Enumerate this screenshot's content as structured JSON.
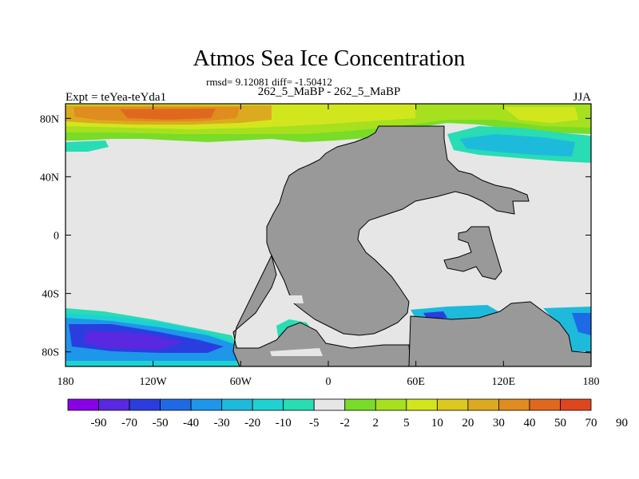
{
  "chart_data": {
    "type": "heatmap",
    "title": "Atmos Sea Ice Concentration",
    "stats": "rmsd= 9.12081 diff= -1.50412",
    "subtitle": "262_5_MaBP - 262_5_MaBP",
    "left_label": "Expt = teYea-teYda1",
    "right_label": "JJA",
    "projection": "cylindrical-equidistant",
    "xlim": [
      -180,
      180
    ],
    "ylim": [
      -90,
      90
    ],
    "x_ticks": [
      -180,
      -120,
      -60,
      0,
      60,
      120,
      180
    ],
    "x_tick_labels": [
      "180",
      "120W",
      "60W",
      "0",
      "60E",
      "120E",
      "180"
    ],
    "y_ticks": [
      80,
      40,
      0,
      -40,
      -80
    ],
    "y_tick_labels": [
      "80N",
      "40N",
      "0",
      "40S",
      "80S"
    ],
    "levels": [
      "-90",
      "-70",
      "-50",
      "-40",
      "-30",
      "-20",
      "-10",
      "-5",
      "-2",
      "2",
      "5",
      "10",
      "20",
      "30",
      "40",
      "50",
      "70",
      "90"
    ],
    "colors": [
      "#8a00e6",
      "#5a28e0",
      "#2a3ee0",
      "#1e6ae6",
      "#1e96ea",
      "#1ebadc",
      "#1ed2d2",
      "#28dcb4",
      "#e6e6e6",
      "#78dc28",
      "#a6e01e",
      "#d2e61e",
      "#dcc81e",
      "#dcaa1e",
      "#e08c1e",
      "#e0681e",
      "#e0461e"
    ],
    "land_color": "#999999",
    "missing_color": "#e6e6e6",
    "regions": [
      {
        "name": "arctic-atlantic-high",
        "level": 70,
        "lon": [
          -175,
          -60
        ],
        "lat": [
          74,
          88
        ]
      },
      {
        "name": "arctic-east-positive",
        "level": 30,
        "lon": [
          60,
          175
        ],
        "lat": [
          72,
          88
        ]
      },
      {
        "name": "arctic-east-negative",
        "level": -30,
        "lon": [
          75,
          170
        ],
        "lat": [
          56,
          70
        ]
      },
      {
        "name": "antarctic-pacific-negative",
        "level": -70,
        "lon": [
          -175,
          -115
        ],
        "lat": [
          -85,
          -65
        ]
      },
      {
        "name": "antarctic-weddell-negative",
        "level": -20,
        "lon": [
          -35,
          -10
        ],
        "lat": [
          -70,
          -56
        ]
      },
      {
        "name": "antarctic-indian-negative",
        "level": -40,
        "lon": [
          60,
          110
        ],
        "lat": [
          -62,
          -50
        ]
      },
      {
        "name": "antarctic-east-negative",
        "level": -40,
        "lon": [
          160,
          180
        ],
        "lat": [
          -80,
          -50
        ]
      }
    ]
  }
}
